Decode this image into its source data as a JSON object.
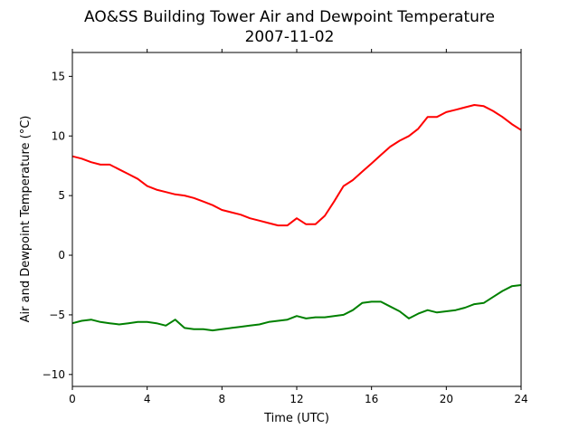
{
  "chart_data": {
    "type": "line",
    "title": "AO&SS Building Tower Air and Dewpoint Temperature",
    "subtitle": "2007-11-02",
    "xlabel": "Time (UTC)",
    "ylabel": "Air and Dewpoint Temperature (°C)",
    "xlim": [
      0,
      24
    ],
    "ylim": [
      -11,
      17
    ],
    "xticks": [
      0,
      4,
      8,
      12,
      16,
      20,
      24
    ],
    "yticks": [
      -10,
      -5,
      0,
      5,
      10,
      15
    ],
    "grid": false,
    "legend": "none",
    "series": [
      {
        "color": "#ff0000",
        "x": [
          0,
          0.5,
          1,
          1.5,
          2,
          2.5,
          3,
          3.5,
          4,
          4.5,
          5,
          5.5,
          6,
          6.5,
          7,
          7.5,
          8,
          8.5,
          9,
          9.5,
          10,
          10.5,
          11,
          11.5,
          12,
          12.5,
          13,
          13.5,
          14,
          14.5,
          15,
          15.5,
          16,
          16.5,
          17,
          17.5,
          18,
          18.5,
          19,
          19.5,
          20,
          20.5,
          21,
          21.5,
          22,
          22.5,
          23,
          23.5,
          24
        ],
        "values": [
          8.3,
          8.1,
          7.8,
          7.6,
          7.6,
          7.2,
          6.8,
          6.4,
          5.8,
          5.5,
          5.3,
          5.1,
          5.0,
          4.8,
          4.5,
          4.2,
          3.8,
          3.6,
          3.4,
          3.1,
          2.9,
          2.7,
          2.5,
          2.5,
          3.1,
          2.6,
          2.6,
          3.3,
          4.5,
          5.8,
          6.3,
          7.0,
          7.7,
          8.4,
          9.1,
          9.6,
          10.0,
          10.6,
          11.6,
          11.6,
          12.0,
          12.2,
          12.4,
          12.6,
          12.5,
          12.1,
          11.6,
          11.0,
          10.5
        ]
      },
      {
        "color": "#008000",
        "x": [
          0,
          0.5,
          1,
          1.5,
          2,
          2.5,
          3,
          3.5,
          4,
          4.5,
          5,
          5.5,
          6,
          6.5,
          7,
          7.5,
          8,
          8.5,
          9,
          9.5,
          10,
          10.5,
          11,
          11.5,
          12,
          12.5,
          13,
          13.5,
          14,
          14.5,
          15,
          15.5,
          16,
          16.5,
          17,
          17.5,
          18,
          18.5,
          19,
          19.5,
          20,
          20.5,
          21,
          21.5,
          22,
          22.5,
          23,
          23.5,
          24
        ],
        "values": [
          -5.7,
          -5.5,
          -5.4,
          -5.6,
          -5.7,
          -5.8,
          -5.7,
          -5.6,
          -5.6,
          -5.7,
          -5.9,
          -5.4,
          -6.1,
          -6.2,
          -6.2,
          -6.3,
          -6.2,
          -6.1,
          -6.0,
          -5.9,
          -5.8,
          -5.6,
          -5.5,
          -5.4,
          -5.1,
          -5.3,
          -5.2,
          -5.2,
          -5.1,
          -5.0,
          -4.6,
          -4.0,
          -3.9,
          -3.9,
          -4.3,
          -4.7,
          -5.3,
          -4.9,
          -4.6,
          -4.8,
          -4.7,
          -4.6,
          -4.4,
          -4.1,
          -4.0,
          -3.5,
          -3.0,
          -2.6,
          -2.5
        ]
      }
    ]
  }
}
